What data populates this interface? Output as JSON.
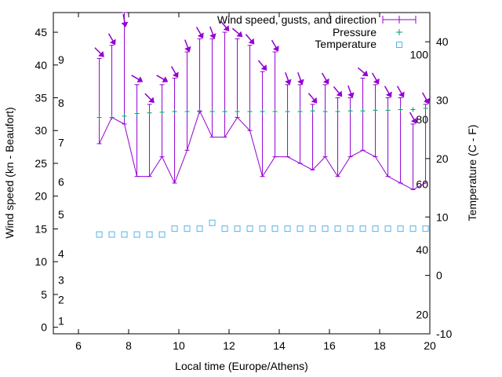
{
  "chart_data": {
    "type": "line",
    "title": "",
    "xlabel": "Local time (Europe/Athens)",
    "ylabel": "Wind speed (kn - Beaufort)",
    "y2label": "Temperature (C - F)",
    "xlim": [
      5,
      20
    ],
    "ylim": [
      -1,
      48
    ],
    "y2lim": [
      -10,
      45
    ],
    "x_ticks": [
      6,
      8,
      10,
      12,
      14,
      16,
      18,
      20
    ],
    "y_ticks": [
      0,
      5,
      10,
      15,
      20,
      25,
      30,
      35,
      40,
      45
    ],
    "y2_ticks": [
      -10,
      0,
      10,
      20,
      30,
      40
    ],
    "beaufort_labels": [
      {
        "text": "1",
        "y": 1
      },
      {
        "text": "2",
        "y": 4.2
      },
      {
        "text": "3",
        "y": 7.2
      },
      {
        "text": "4",
        "y": 11.2
      },
      {
        "text": "5",
        "y": 17.2
      },
      {
        "text": "6",
        "y": 22.2
      },
      {
        "text": "7",
        "y": 28.2
      },
      {
        "text": "8",
        "y": 34.2
      },
      {
        "text": "9",
        "y": 40.8
      }
    ],
    "fahrenheit_labels": [
      {
        "text": "20",
        "y2": -6.7
      },
      {
        "text": "40",
        "y2": 4.4
      },
      {
        "text": "60",
        "y2": 15.6
      },
      {
        "text": "80",
        "y2": 26.7
      },
      {
        "text": "100",
        "y2": 37.8
      }
    ],
    "legend_position": "top-right",
    "series": [
      {
        "name": "Wind speed, gusts, and direction",
        "color": "#9400d3",
        "x": [
          6.83,
          7.33,
          7.83,
          8.33,
          8.83,
          9.33,
          9.83,
          10.33,
          10.83,
          11.33,
          11.83,
          12.33,
          12.83,
          13.33,
          13.83,
          14.33,
          14.83,
          15.33,
          15.83,
          16.33,
          16.83,
          17.33,
          17.83,
          18.33,
          18.83,
          19.33,
          19.83
        ],
        "speed": [
          28,
          32,
          31,
          23,
          23,
          26,
          22,
          27,
          33,
          29,
          29,
          32,
          30,
          23,
          26,
          26,
          25,
          24,
          26,
          23,
          26,
          27,
          26,
          23,
          22,
          21,
          22
        ],
        "gust": [
          41,
          43,
          48,
          37,
          34,
          37,
          38,
          42,
          44,
          44,
          45,
          44,
          43,
          39,
          42,
          37,
          37,
          34,
          37,
          35,
          35,
          38,
          37,
          35,
          35,
          31,
          34
        ],
        "direction_deg": [
          315,
          330,
          350,
          300,
          315,
          300,
          330,
          340,
          330,
          340,
          320,
          310,
          320,
          320,
          330,
          340,
          340,
          320,
          330,
          320,
          340,
          310,
          330,
          330,
          330,
          330,
          330
        ]
      },
      {
        "name": "Pressure",
        "color": "#009e73",
        "x": [
          6.83,
          7.33,
          7.83,
          8.33,
          8.83,
          9.33,
          9.83,
          10.33,
          10.83,
          11.33,
          11.83,
          12.33,
          12.83,
          13.33,
          13.83,
          14.33,
          14.83,
          15.33,
          15.83,
          16.33,
          16.83,
          17.33,
          17.83,
          18.33,
          18.83,
          19.33,
          19.83
        ],
        "y": [
          32.0,
          32.0,
          32.2,
          32.6,
          32.7,
          32.8,
          32.9,
          32.9,
          32.9,
          32.9,
          32.9,
          32.9,
          32.9,
          32.9,
          32.9,
          32.9,
          32.9,
          33.0,
          32.9,
          32.9,
          33.0,
          33.0,
          33.1,
          33.1,
          33.2,
          33.2,
          33.4
        ]
      },
      {
        "name": "Temperature",
        "color": "#56b4e9",
        "x": [
          6.83,
          7.33,
          7.83,
          8.33,
          8.83,
          9.33,
          9.83,
          10.33,
          10.83,
          11.33,
          11.83,
          12.33,
          12.83,
          13.33,
          13.83,
          14.33,
          14.83,
          15.33,
          15.83,
          16.33,
          16.83,
          17.33,
          17.83,
          18.33,
          18.83,
          19.33,
          19.83
        ],
        "y2": [
          7,
          7,
          7,
          7,
          7,
          7,
          8,
          8,
          8,
          9,
          8,
          8,
          8,
          8,
          8,
          8,
          8,
          8,
          8,
          8,
          8,
          8,
          8,
          8,
          8,
          8,
          8
        ]
      }
    ]
  }
}
